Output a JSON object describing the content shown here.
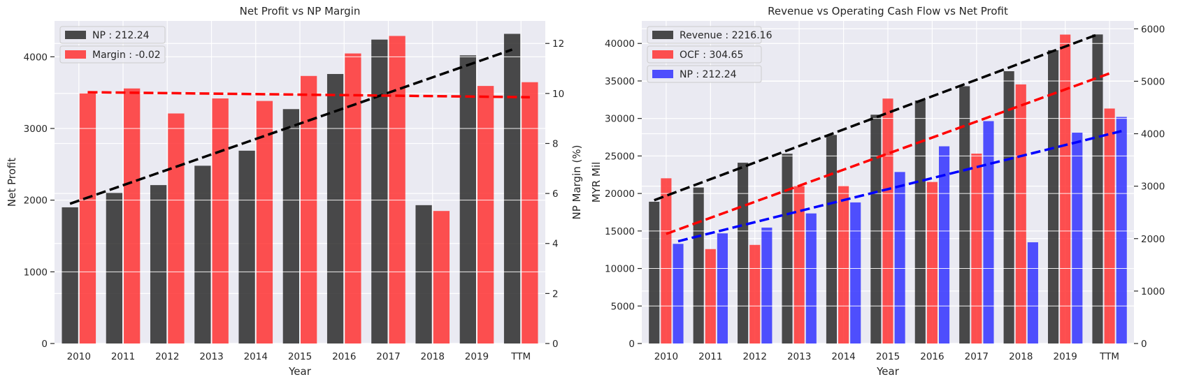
{
  "colors": {
    "plot_background": "#eaeaf2",
    "grid": "#ffffff",
    "np": "#2b2b2b",
    "margin": "#ff3333",
    "revenue": "#2b2b2b",
    "ocf": "#ff3333",
    "np_blue": "#3333ff",
    "trend_black": "#000000",
    "trend_red": "#ff0000",
    "trend_blue": "#0000ff"
  },
  "chart_data": [
    {
      "type": "bar",
      "title": "Net Profit vs NP Margin",
      "xlabel": "Year",
      "ylabel": "Net Profit",
      "y2label": "NP Margin (%)",
      "categories": [
        "2010",
        "2011",
        "2012",
        "2013",
        "2014",
        "2015",
        "2016",
        "2017",
        "2018",
        "2019",
        "TTM"
      ],
      "ylim": [
        0,
        4500
      ],
      "yticks": [
        0,
        1000,
        2000,
        3000,
        4000
      ],
      "y2lim": [
        0,
        12.9
      ],
      "y2ticks": [
        0,
        2,
        4,
        6,
        8,
        10,
        12
      ],
      "grid": true,
      "legend_position": "top-left",
      "series": [
        {
          "name": "NP : 212.24",
          "axis": "left",
          "color": "#2b2b2b",
          "values": [
            1900,
            2100,
            2210,
            2480,
            2690,
            3270,
            3760,
            4240,
            1930,
            4020,
            4320
          ]
        },
        {
          "name": "Margin : -0.02",
          "axis": "right",
          "color": "#ff3333",
          "values": [
            10.0,
            10.2,
            9.2,
            9.8,
            9.7,
            10.7,
            11.6,
            12.3,
            5.3,
            10.3,
            10.45
          ]
        }
      ],
      "trend_lines": [
        {
          "series": "NP : 212.24",
          "axis": "left",
          "color": "#000000",
          "start": 1950,
          "end": 4100
        },
        {
          "series": "Margin : -0.02",
          "axis": "right",
          "color": "#ff0000",
          "start": 10.05,
          "end": 9.85
        }
      ]
    },
    {
      "type": "bar",
      "title": "Revenue vs Operating Cash Flow vs Net Profit",
      "xlabel": "Year",
      "ylabel": "MYR Mil",
      "categories": [
        "2010",
        "2011",
        "2012",
        "2013",
        "2014",
        "2015",
        "2016",
        "2017",
        "2018",
        "2019",
        "TTM"
      ],
      "ylim": [
        0,
        43000
      ],
      "yticks": [
        0,
        5000,
        10000,
        15000,
        20000,
        25000,
        30000,
        35000,
        40000
      ],
      "y2lim": [
        0,
        6150
      ],
      "y2ticks": [
        0,
        1000,
        2000,
        3000,
        4000,
        5000,
        6000
      ],
      "grid": true,
      "legend_position": "top-left",
      "series": [
        {
          "name": "Revenue : 2216.16",
          "axis": "left",
          "color": "#2b2b2b",
          "values": [
            18900,
            20800,
            24100,
            25300,
            27800,
            30500,
            32400,
            34300,
            36300,
            39100,
            41200
          ]
        },
        {
          "name": "OCF : 304.65",
          "axis": "right",
          "color": "#ff3333",
          "values": [
            3150,
            1800,
            1880,
            3000,
            3000,
            4670,
            3080,
            3620,
            4940,
            5890,
            4480
          ]
        },
        {
          "name": "NP : 212.24",
          "axis": "right",
          "color": "#3333ff",
          "values": [
            1900,
            2100,
            2210,
            2480,
            2690,
            3270,
            3760,
            4240,
            1930,
            4020,
            4320
          ]
        }
      ],
      "trend_lines": [
        {
          "series": "Revenue : 2216.16",
          "axis": "left",
          "color": "#000000",
          "start": 19100,
          "end": 41200
        },
        {
          "series": "OCF : 304.65",
          "axis": "right",
          "color": "#ff0000",
          "start": 2090,
          "end": 5150
        },
        {
          "series": "NP : 212.24",
          "axis": "right",
          "color": "#0000ff",
          "start": 1950,
          "end": 4050
        }
      ]
    }
  ]
}
